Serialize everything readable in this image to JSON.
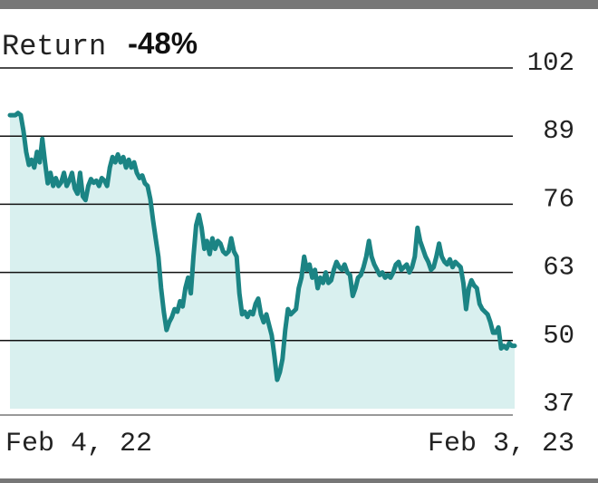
{
  "chart_data": {
    "type": "area",
    "title": "Return",
    "title_value": "-48%",
    "x_start_label": "Feb 4, 22",
    "x_end_label": "Feb 3, 23",
    "y_ticks": [
      102,
      89,
      76,
      63,
      50,
      37
    ],
    "ylim": [
      37,
      102
    ],
    "grid": true,
    "line_color": "#1b8484",
    "fill_color": "#d9f0ef",
    "series": [
      {
        "values": [
          93,
          93,
          93,
          93.4,
          93,
          90,
          86,
          83.5,
          84.5,
          83,
          86,
          84,
          88.5,
          84,
          80,
          82,
          79.5,
          81,
          79.5,
          80.2,
          82,
          79.5,
          80.5,
          82,
          79,
          78,
          82,
          77.5,
          76.8,
          79.5,
          80.8,
          80.1,
          80.5,
          79.5,
          81,
          80.5,
          79.5,
          83,
          85,
          84,
          85.5,
          84,
          85,
          83,
          84.5,
          83,
          84,
          82,
          81,
          81.5,
          80,
          79.5,
          77,
          73,
          69.5,
          66,
          60,
          55.5,
          52,
          53.5,
          54.5,
          56,
          55.5,
          57.5,
          56.5,
          60,
          62,
          59,
          66,
          72,
          74,
          71.5,
          67.5,
          69,
          66.5,
          69.5,
          67.5,
          69,
          68.5,
          67,
          66.5,
          67,
          69.5,
          67,
          66,
          59,
          55,
          55.5,
          54.5,
          55.5,
          55,
          57,
          58,
          55,
          53.5,
          55,
          53,
          51,
          47,
          42.5,
          44,
          46.5,
          52,
          56,
          55,
          55.5,
          56,
          60,
          62,
          66,
          63.5,
          64.5,
          62,
          63.5,
          60,
          62,
          61,
          63,
          61,
          61.5,
          63.5,
          65,
          64,
          63.5,
          64.5,
          63,
          62.5,
          58.5,
          60,
          62,
          62.5,
          64,
          66,
          69,
          66,
          64.5,
          63.5,
          62.5,
          63,
          62,
          62.5,
          62,
          63,
          64.5,
          65,
          63.5,
          64,
          64.5,
          63,
          64,
          66,
          71.5,
          69,
          67.5,
          66,
          65,
          63.5,
          64,
          66,
          68.5,
          66,
          65,
          64.5,
          65.5,
          64,
          65,
          64.5,
          64,
          61,
          56,
          60,
          61.5,
          60.5,
          60,
          57,
          56,
          55.5,
          55,
          53.5,
          51.5,
          51.5,
          52.5,
          48.5,
          49,
          48.5,
          49.5,
          49,
          49
        ]
      }
    ]
  }
}
